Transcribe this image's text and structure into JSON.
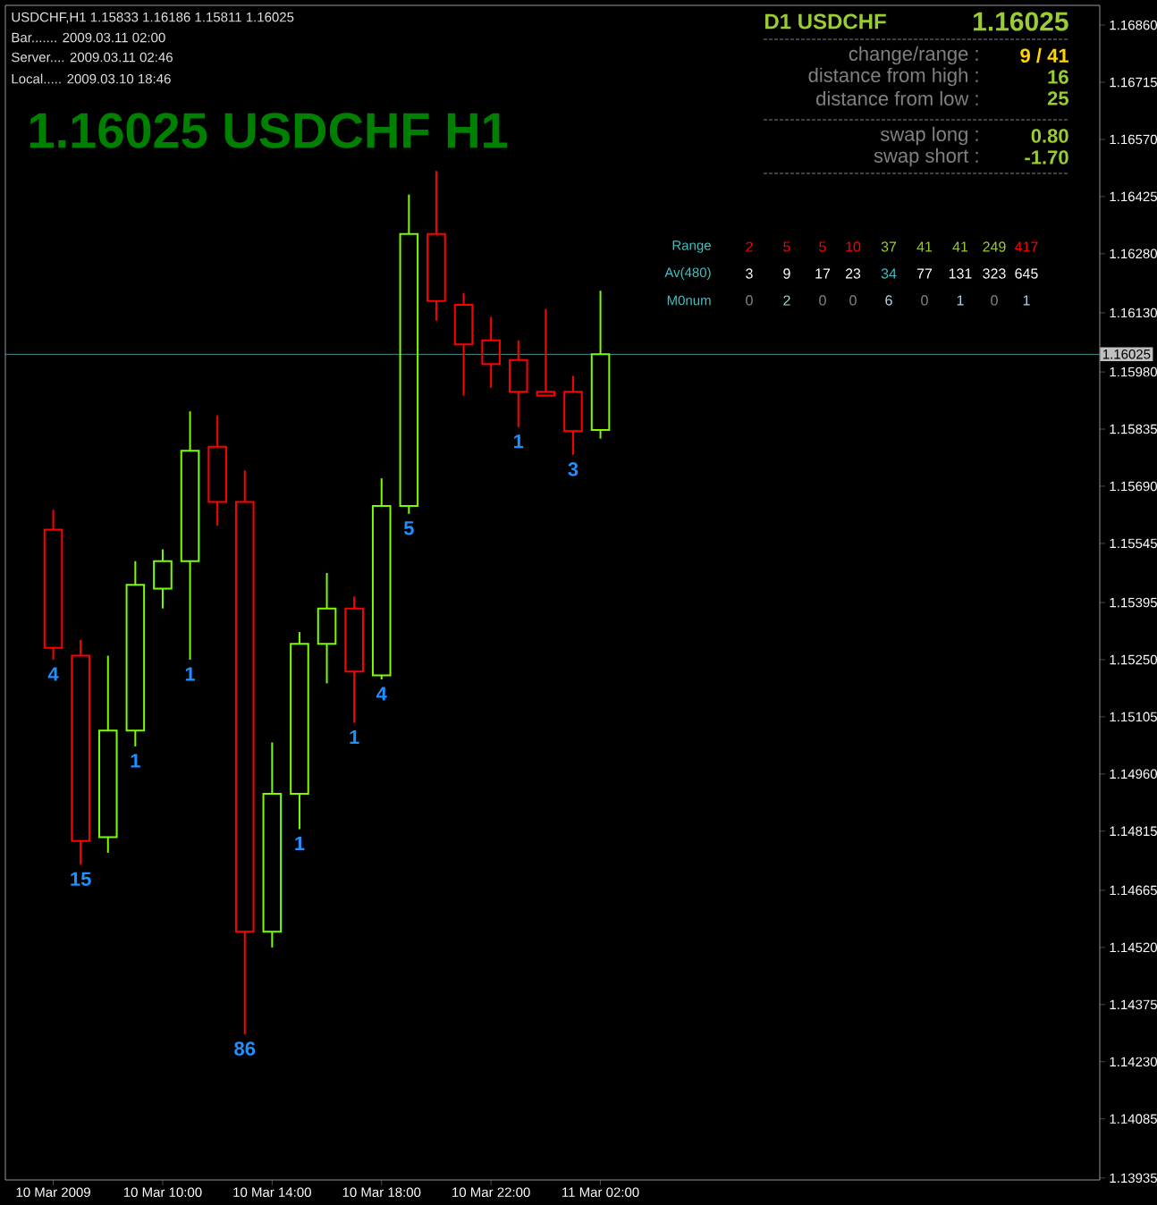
{
  "chart_data": {
    "type": "candlestick",
    "title": "1.16025 USDCHF H1",
    "x": [
      "2009-03-10T06:00",
      "2009-03-10T07:00",
      "2009-03-10T08:00",
      "2009-03-10T09:00",
      "2009-03-10T10:00",
      "2009-03-10T11:00",
      "2009-03-10T12:00",
      "2009-03-10T13:00",
      "2009-03-10T14:00",
      "2009-03-10T15:00",
      "2009-03-10T16:00",
      "2009-03-10T17:00",
      "2009-03-10T18:00",
      "2009-03-10T19:00",
      "2009-03-10T20:00",
      "2009-03-10T21:00",
      "2009-03-10T22:00",
      "2009-03-10T23:00",
      "2009-03-11T00:00",
      "2009-03-11T01:00",
      "2009-03-11T02:00"
    ],
    "ohlc": [
      [
        1.1558,
        1.1563,
        1.1525,
        1.1528
      ],
      [
        1.1526,
        1.153,
        1.1473,
        1.1479
      ],
      [
        1.148,
        1.1526,
        1.1476,
        1.1507
      ],
      [
        1.1507,
        1.155,
        1.1503,
        1.1544
      ],
      [
        1.1543,
        1.1553,
        1.1538,
        1.155
      ],
      [
        1.155,
        1.1588,
        1.1525,
        1.1578
      ],
      [
        1.1579,
        1.1587,
        1.1559,
        1.1565
      ],
      [
        1.1565,
        1.1573,
        1.143,
        1.1456
      ],
      [
        1.1456,
        1.1504,
        1.1452,
        1.1491
      ],
      [
        1.1491,
        1.1532,
        1.1482,
        1.1529
      ],
      [
        1.1529,
        1.1547,
        1.1519,
        1.1538
      ],
      [
        1.1538,
        1.1541,
        1.1509,
        1.1522
      ],
      [
        1.1521,
        1.1571,
        1.152,
        1.1564
      ],
      [
        1.1564,
        1.1643,
        1.1562,
        1.1633
      ],
      [
        1.1633,
        1.1649,
        1.1611,
        1.1616
      ],
      [
        1.1615,
        1.1618,
        1.1592,
        1.1605
      ],
      [
        1.1606,
        1.1612,
        1.1594,
        1.16
      ],
      [
        1.1601,
        1.1606,
        1.1584,
        1.1593
      ],
      [
        1.1593,
        1.1614,
        1.1592,
        1.1592
      ],
      [
        1.1593,
        1.1597,
        1.1577,
        1.1583
      ],
      [
        1.15833,
        1.16186,
        1.15811,
        1.16025
      ]
    ],
    "colors": [
      "#ff0000",
      "#ff0000",
      "#7cfc00",
      "#7cfc00",
      "#7cfc00",
      "#7cfc00",
      "#ff0000",
      "#ff0000",
      "#7cfc00",
      "#7cfc00",
      "#7cfc00",
      "#ff0000",
      "#7cfc00",
      "#7cfc00",
      "#ff0000",
      "#ff0000",
      "#ff0000",
      "#ff0000",
      "#ff0000",
      "#ff0000",
      "#7cfc00"
    ],
    "xlim": [
      "2009-03-10T04:15",
      "2009-03-11T20:15"
    ],
    "xticks": [
      {
        "value": "2009-03-10T06:00",
        "label": "10 Mar 2009"
      },
      {
        "value": "2009-03-10T10:00",
        "label": "10 Mar 10:00"
      },
      {
        "value": "2009-03-10T14:00",
        "label": "10 Mar 14:00"
      },
      {
        "value": "2009-03-10T18:00",
        "label": "10 Mar 18:00"
      },
      {
        "value": "2009-03-10T22:00",
        "label": "10 Mar 22:00"
      },
      {
        "value": "2009-03-11T02:00",
        "label": "11 Mar 02:00"
      }
    ],
    "ylim": [
      1.1393,
      1.1691
    ],
    "yticks": [
      {
        "value": 1.1686,
        "label": "1.16860"
      },
      {
        "value": 1.16715,
        "label": "1.16715"
      },
      {
        "value": 1.1657,
        "label": "1.16570"
      },
      {
        "value": 1.16425,
        "label": "1.16425"
      },
      {
        "value": 1.1628,
        "label": "1.16280"
      },
      {
        "value": 1.1613,
        "label": "1.16130"
      },
      {
        "value": 1.1598,
        "label": "1.15980"
      },
      {
        "value": 1.15835,
        "label": "1.15835"
      },
      {
        "value": 1.1569,
        "label": "1.15690"
      },
      {
        "value": 1.15545,
        "label": "1.15545"
      },
      {
        "value": 1.15395,
        "label": "1.15395"
      },
      {
        "value": 1.1525,
        "label": "1.15250"
      },
      {
        "value": 1.15105,
        "label": "1.15105"
      },
      {
        "value": 1.1496,
        "label": "1.14960"
      },
      {
        "value": 1.14815,
        "label": "1.14815"
      },
      {
        "value": 1.14665,
        "label": "1.14665"
      },
      {
        "value": 1.1452,
        "label": "1.14520"
      },
      {
        "value": 1.14375,
        "label": "1.14375"
      },
      {
        "value": 1.1423,
        "label": "1.14230"
      },
      {
        "value": 1.14085,
        "label": "1.14085"
      },
      {
        "value": 1.13935,
        "label": "1.13935"
      }
    ],
    "ref_lines": [
      {
        "axis": "y",
        "value": 1.16025,
        "label": "1.16025",
        "color": "#4fa3a3"
      }
    ],
    "grid": false,
    "annotations": [
      "USDCHF,H1  1.15833 1.16186 1.15811 1.16025",
      "Bar....... 2009.03.11 02:00",
      "Server.... 2009.03.11 02:46",
      "Local..... 2009.03.10 18:46",
      "D1 USDCHF",
      "1.16025",
      "change/range :",
      "9 / 41",
      "distance from high :",
      "16",
      "distance from low :",
      "25",
      "swap long :",
      "0.80",
      "swap short :",
      "-1.70",
      "Range",
      "2",
      "5",
      "5",
      "10",
      "37",
      "41",
      "41",
      "249",
      "417",
      "Av(480)",
      "3",
      "9",
      "17",
      "23",
      "34",
      "77",
      "131",
      "323",
      "645",
      "M0num",
      "0",
      "2",
      "0",
      "0",
      "6",
      "0",
      "1",
      "0",
      "1",
      "4",
      "15",
      "1",
      "1",
      "86",
      "1",
      "1",
      "4",
      "5",
      "1",
      "3"
    ]
  }
}
